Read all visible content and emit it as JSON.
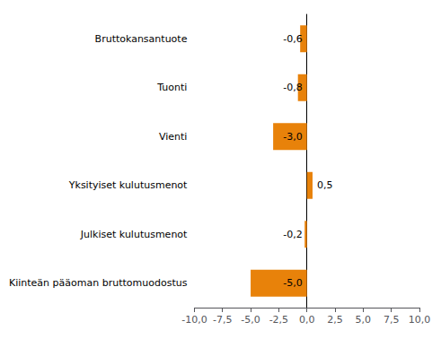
{
  "chart_data": {
    "type": "bar",
    "orientation": "horizontal",
    "categories": [
      "Kiinteän pääoman bruttomuodostus",
      "Julkiset kulutusmenot",
      "Yksityiset kulutusmenot",
      "Vienti",
      "Tuonti",
      "Bruttokansantuote"
    ],
    "values": [
      -5.0,
      -0.2,
      0.5,
      -3.0,
      -0.8,
      -0.6
    ],
    "value_labels": [
      "-5,0",
      "-0,2",
      "0,5",
      "-3,0",
      "-0,8",
      "-0,6"
    ],
    "data_labels": true,
    "color": "#E8820A",
    "xlim": [
      -10.0,
      10.0
    ],
    "xticks": [
      {
        "value": -10.0,
        "label": "-10,0"
      },
      {
        "value": -7.5,
        "label": "-7,5"
      },
      {
        "value": -5.0,
        "label": "-5,0"
      },
      {
        "value": -2.5,
        "label": "-2,5"
      },
      {
        "value": 0.0,
        "label": "0,0"
      },
      {
        "value": 2.5,
        "label": "2,5"
      },
      {
        "value": 5.0,
        "label": "5,0"
      },
      {
        "value": 7.5,
        "label": "7,5"
      },
      {
        "value": 10.0,
        "label": "10,0"
      }
    ],
    "grid": false
  }
}
